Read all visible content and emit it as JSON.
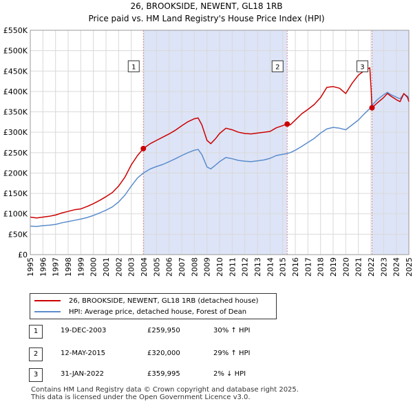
{
  "title": "26, BROOKSIDE, NEWENT, GL18 1RB",
  "subtitle": "Price paid vs. HM Land Registry's House Price Index (HPI)",
  "colors": {
    "property": "#cc0000",
    "hpi": "#5b8ccc",
    "shade": "#dde4f7",
    "grid": "#d9d9d9",
    "marker_line": "#d98a8a"
  },
  "chart_data": {
    "type": "line",
    "title": "26, BROOKSIDE, NEWENT, GL18 1RB",
    "subtitle": "Price paid vs. HM Land Registry's House Price Index (HPI)",
    "xlim": [
      1995,
      2025
    ],
    "ylim": [
      0,
      550000
    ],
    "x_ticks": [
      "1995",
      "1996",
      "1997",
      "1998",
      "1999",
      "2000",
      "2001",
      "2002",
      "2003",
      "2004",
      "2005",
      "2006",
      "2007",
      "2008",
      "2009",
      "2010",
      "2011",
      "2012",
      "2013",
      "2014",
      "2015",
      "2016",
      "2017",
      "2018",
      "2019",
      "2020",
      "2021",
      "2022",
      "2023",
      "2024",
      "2025"
    ],
    "y_ticks": [
      {
        "value": 0,
        "label": "£0"
      },
      {
        "value": 50000,
        "label": "£50K"
      },
      {
        "value": 100000,
        "label": "£100K"
      },
      {
        "value": 150000,
        "label": "£150K"
      },
      {
        "value": 200000,
        "label": "£200K"
      },
      {
        "value": 250000,
        "label": "£250K"
      },
      {
        "value": 300000,
        "label": "£300K"
      },
      {
        "value": 350000,
        "label": "£350K"
      },
      {
        "value": 400000,
        "label": "£400K"
      },
      {
        "value": 450000,
        "label": "£450K"
      },
      {
        "value": 500000,
        "label": "£500K"
      },
      {
        "value": 550000,
        "label": "£550K"
      }
    ],
    "shaded_ranges": [
      [
        2003.96,
        2015.36
      ],
      [
        2022.08,
        2025
      ]
    ],
    "series": [
      {
        "name": "26, BROOKSIDE, NEWENT, GL18 1RB (detached house)",
        "color": "#cc0000",
        "points": [
          [
            1995,
            92000
          ],
          [
            1995.5,
            90000
          ],
          [
            1996,
            92000
          ],
          [
            1996.5,
            94000
          ],
          [
            1997,
            97000
          ],
          [
            1997.5,
            102000
          ],
          [
            1998,
            106000
          ],
          [
            1998.5,
            110000
          ],
          [
            1999,
            112000
          ],
          [
            1999.5,
            118000
          ],
          [
            2000,
            125000
          ],
          [
            2000.5,
            133000
          ],
          [
            2001,
            142000
          ],
          [
            2001.5,
            152000
          ],
          [
            2002,
            168000
          ],
          [
            2002.5,
            190000
          ],
          [
            2003,
            220000
          ],
          [
            2003.5,
            243000
          ],
          [
            2003.96,
            259950
          ],
          [
            2004.5,
            272000
          ],
          [
            2005,
            280000
          ],
          [
            2005.5,
            288000
          ],
          [
            2006,
            296000
          ],
          [
            2006.5,
            305000
          ],
          [
            2007,
            316000
          ],
          [
            2007.5,
            326000
          ],
          [
            2008,
            333000
          ],
          [
            2008.3,
            335000
          ],
          [
            2008.6,
            318000
          ],
          [
            2009,
            280000
          ],
          [
            2009.3,
            272000
          ],
          [
            2009.7,
            285000
          ],
          [
            2010,
            297000
          ],
          [
            2010.5,
            310000
          ],
          [
            2011,
            306000
          ],
          [
            2011.5,
            300000
          ],
          [
            2012,
            297000
          ],
          [
            2012.5,
            296000
          ],
          [
            2013,
            298000
          ],
          [
            2013.5,
            300000
          ],
          [
            2014,
            302000
          ],
          [
            2014.5,
            311000
          ],
          [
            2015.36,
            320000
          ],
          [
            2015.6,
            318000
          ],
          [
            2016,
            330000
          ],
          [
            2016.5,
            345000
          ],
          [
            2017,
            356000
          ],
          [
            2017.5,
            368000
          ],
          [
            2018,
            385000
          ],
          [
            2018.5,
            410000
          ],
          [
            2019,
            412000
          ],
          [
            2019.5,
            408000
          ],
          [
            2020,
            395000
          ],
          [
            2020.5,
            420000
          ],
          [
            2021,
            440000
          ],
          [
            2021.5,
            452000
          ],
          [
            2021.9,
            458000
          ],
          [
            2022.0,
            410000
          ],
          [
            2022.08,
            359995
          ],
          [
            2022.5,
            372000
          ],
          [
            2023,
            385000
          ],
          [
            2023.3,
            395000
          ],
          [
            2023.6,
            388000
          ],
          [
            2024,
            380000
          ],
          [
            2024.3,
            375000
          ],
          [
            2024.6,
            395000
          ],
          [
            2024.9,
            385000
          ],
          [
            2025,
            375000
          ]
        ]
      },
      {
        "name": "HPI: Average price, detached house, Forest of Dean",
        "color": "#5b8ccc",
        "points": [
          [
            1995,
            70000
          ],
          [
            1995.5,
            69000
          ],
          [
            1996,
            71000
          ],
          [
            1996.5,
            72000
          ],
          [
            1997,
            74000
          ],
          [
            1997.5,
            78000
          ],
          [
            1998,
            81000
          ],
          [
            1998.5,
            84000
          ],
          [
            1999,
            87000
          ],
          [
            1999.5,
            91000
          ],
          [
            2000,
            96000
          ],
          [
            2000.5,
            102000
          ],
          [
            2001,
            109000
          ],
          [
            2001.5,
            117000
          ],
          [
            2002,
            129000
          ],
          [
            2002.5,
            146000
          ],
          [
            2003,
            168000
          ],
          [
            2003.5,
            188000
          ],
          [
            2003.96,
            200000
          ],
          [
            2004.5,
            210000
          ],
          [
            2005,
            216000
          ],
          [
            2005.5,
            221000
          ],
          [
            2006,
            228000
          ],
          [
            2006.5,
            235000
          ],
          [
            2007,
            243000
          ],
          [
            2007.5,
            250000
          ],
          [
            2008,
            256000
          ],
          [
            2008.3,
            258000
          ],
          [
            2008.6,
            245000
          ],
          [
            2009,
            215000
          ],
          [
            2009.3,
            210000
          ],
          [
            2009.7,
            220000
          ],
          [
            2010,
            228000
          ],
          [
            2010.5,
            238000
          ],
          [
            2011,
            235000
          ],
          [
            2011.5,
            231000
          ],
          [
            2012,
            229000
          ],
          [
            2012.5,
            228000
          ],
          [
            2013,
            230000
          ],
          [
            2013.5,
            232000
          ],
          [
            2014,
            236000
          ],
          [
            2014.5,
            243000
          ],
          [
            2015.36,
            248000
          ],
          [
            2015.6,
            250000
          ],
          [
            2016,
            256000
          ],
          [
            2016.5,
            265000
          ],
          [
            2017,
            275000
          ],
          [
            2017.5,
            285000
          ],
          [
            2018,
            298000
          ],
          [
            2018.5,
            308000
          ],
          [
            2019,
            312000
          ],
          [
            2019.5,
            310000
          ],
          [
            2020,
            306000
          ],
          [
            2020.5,
            318000
          ],
          [
            2021,
            330000
          ],
          [
            2021.5,
            346000
          ],
          [
            2021.9,
            358000
          ],
          [
            2022.08,
            366000
          ],
          [
            2022.5,
            380000
          ],
          [
            2023,
            392000
          ],
          [
            2023.3,
            398000
          ],
          [
            2023.6,
            392000
          ],
          [
            2024,
            386000
          ],
          [
            2024.3,
            382000
          ],
          [
            2024.6,
            394000
          ],
          [
            2024.9,
            388000
          ],
          [
            2025,
            382000
          ]
        ]
      }
    ],
    "sales": [
      {
        "n": "1",
        "x": 2003.96,
        "price": 259950
      },
      {
        "n": "2",
        "x": 2015.36,
        "price": 320000
      },
      {
        "n": "3",
        "x": 2022.08,
        "price": 359995
      }
    ]
  },
  "legend": [
    {
      "label": "26, BROOKSIDE, NEWENT, GL18 1RB (detached house)",
      "color": "#cc0000"
    },
    {
      "label": "HPI: Average price, detached house, Forest of Dean",
      "color": "#5b8ccc"
    }
  ],
  "sales_table": [
    {
      "num": "1",
      "date": "19-DEC-2003",
      "price": "£259,950",
      "hpi": "30% ↑ HPI"
    },
    {
      "num": "2",
      "date": "12-MAY-2015",
      "price": "£320,000",
      "hpi": "29% ↑ HPI"
    },
    {
      "num": "3",
      "date": "31-JAN-2022",
      "price": "£359,995",
      "hpi": "2% ↓ HPI"
    }
  ],
  "footer": {
    "line1": "Contains HM Land Registry data © Crown copyright and database right 2025.",
    "line2": "This data is licensed under the Open Government Licence v3.0."
  }
}
